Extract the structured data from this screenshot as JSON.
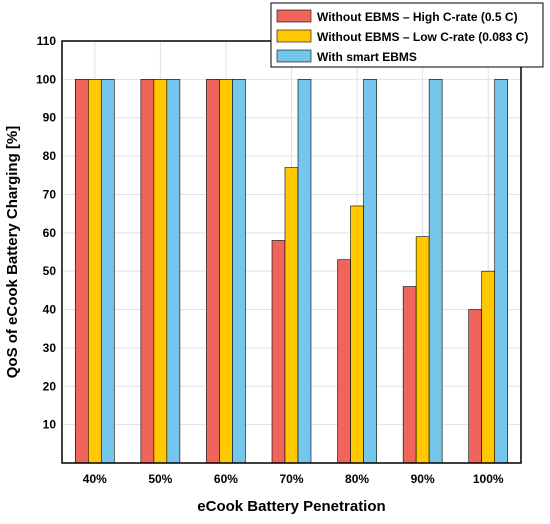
{
  "chart_data": {
    "type": "bar",
    "categories": [
      "40%",
      "50%",
      "60%",
      "70%",
      "80%",
      "90%",
      "100%"
    ],
    "series": [
      {
        "name": "Without EBMS – High C-rate (0.5 C)",
        "values": [
          100,
          100,
          100,
          58,
          53,
          46,
          40
        ],
        "color": "#f0655b"
      },
      {
        "name": "Without EBMS – Low C-rate (0.083 C)",
        "values": [
          100,
          100,
          100,
          77,
          67,
          59,
          50
        ],
        "color": "#ffc800"
      },
      {
        "name": "With smart EBMS",
        "values": [
          100,
          100,
          100,
          100,
          100,
          100,
          100
        ],
        "color": "#74c6ec"
      }
    ],
    "xlabel": "eCook Battery Penetration",
    "ylabel": "QoS of eCook Battery Charging [%]",
    "ylim": [
      0,
      110
    ],
    "yticks": [
      10,
      20,
      30,
      40,
      50,
      60,
      70,
      80,
      90,
      100,
      110
    ],
    "grid": true,
    "legend_position": "top-right"
  }
}
